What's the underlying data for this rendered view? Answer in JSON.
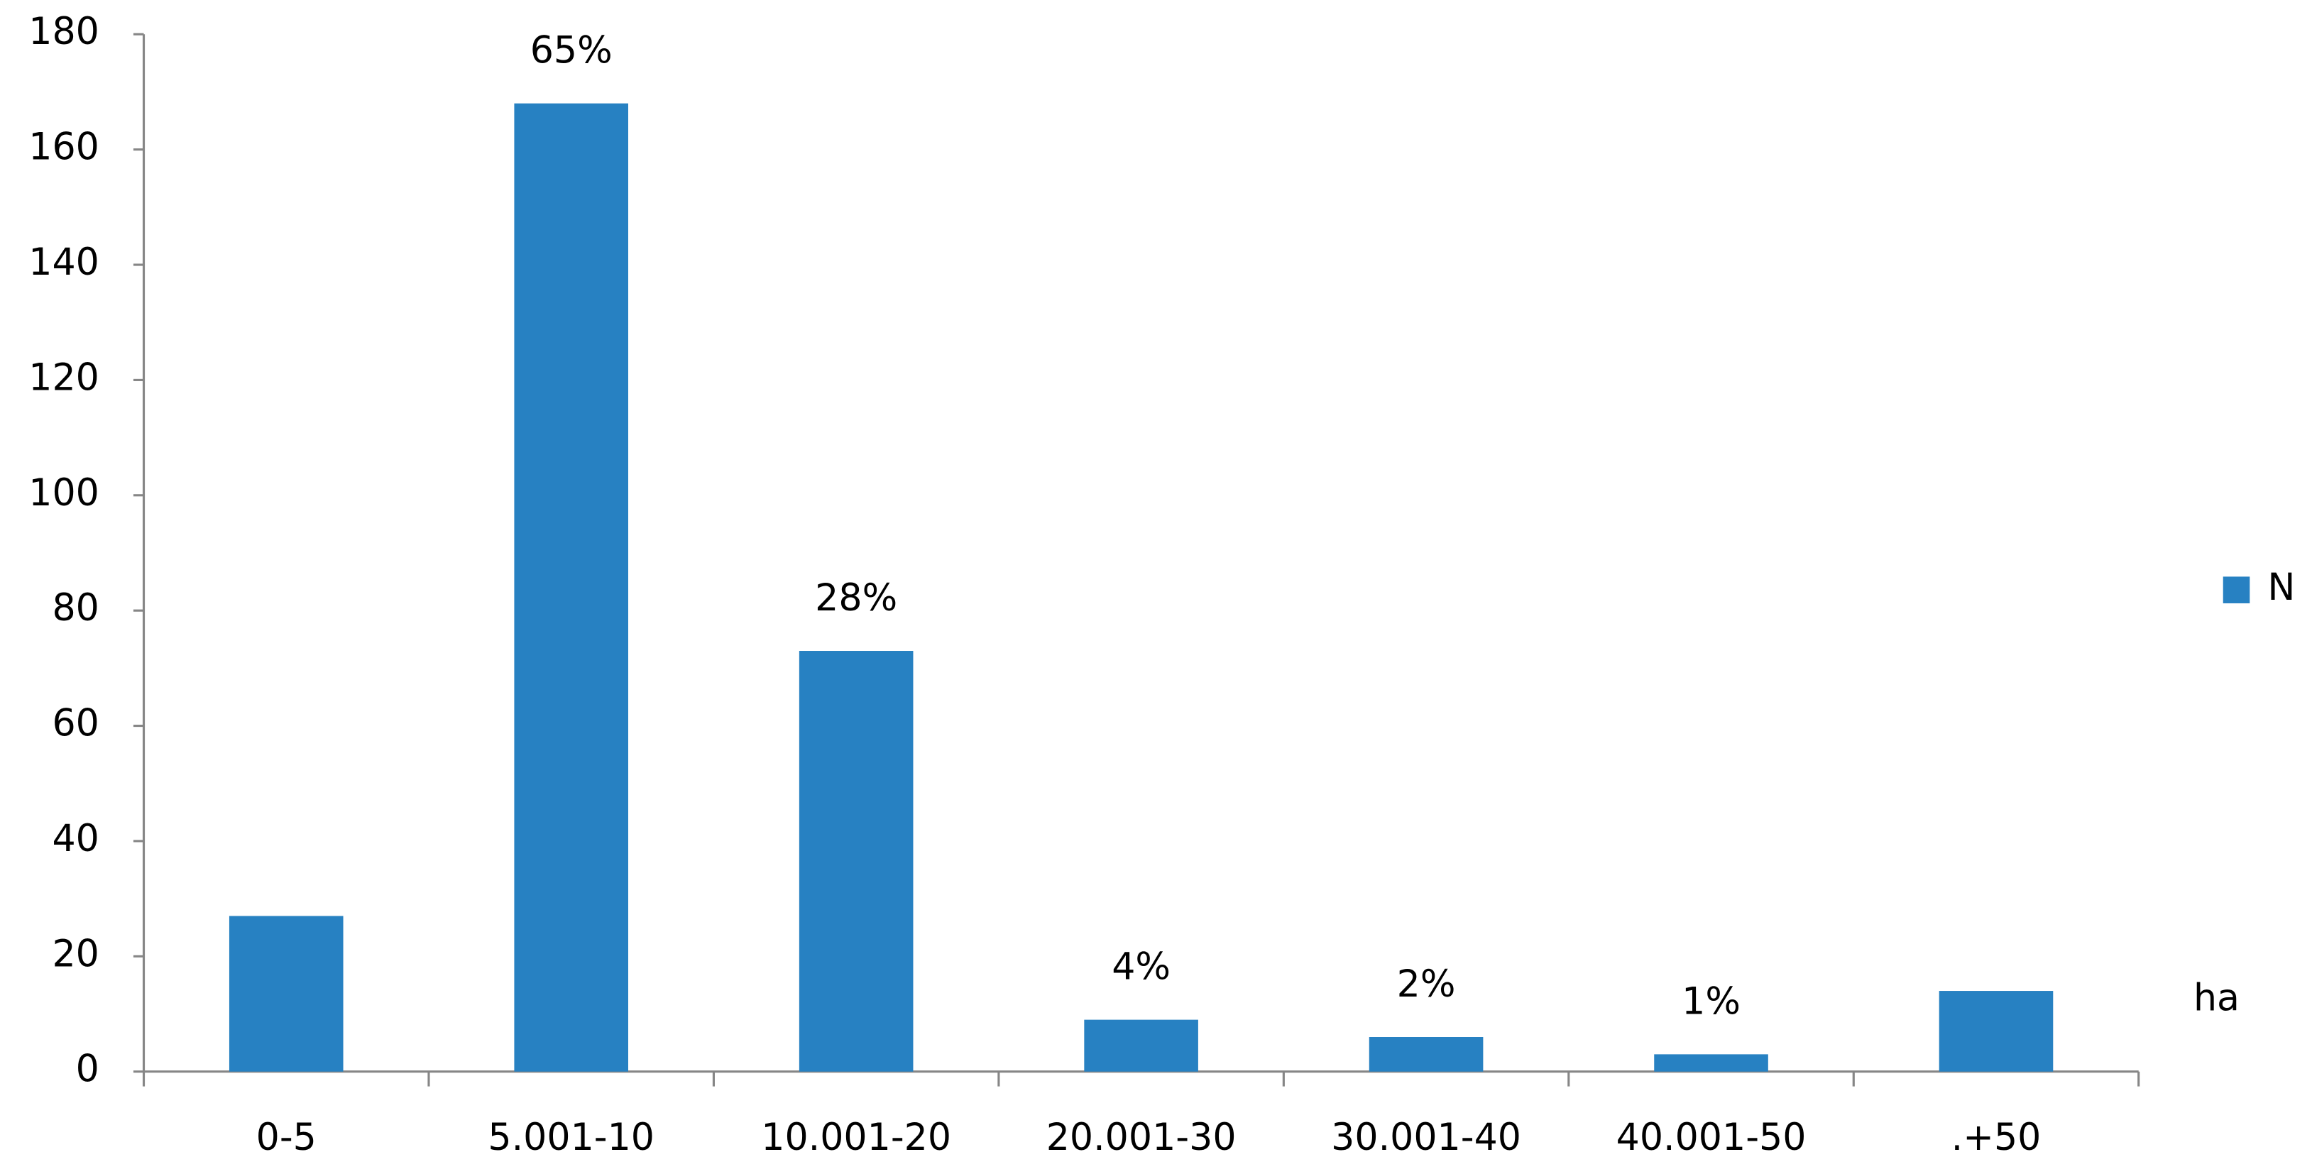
{
  "chart_data": {
    "type": "bar",
    "categories": [
      "0-5",
      "5.001-10",
      "10.001-20",
      "20.001-30",
      "30.001-40",
      "40.001-50",
      ".+50"
    ],
    "series": [
      {
        "name": "N",
        "color": "#2781c2",
        "values": [
          27,
          168,
          73,
          9,
          6,
          3,
          14
        ]
      }
    ],
    "shares": [
      null,
      "65%",
      "28%",
      "4%",
      "2%",
      "1%",
      null
    ],
    "x_label": "ha",
    "ylim": [
      0,
      180
    ],
    "yticks": [
      0,
      20,
      40,
      60,
      80,
      100,
      120,
      140,
      160,
      180
    ],
    "grid": false,
    "legend": "right"
  }
}
